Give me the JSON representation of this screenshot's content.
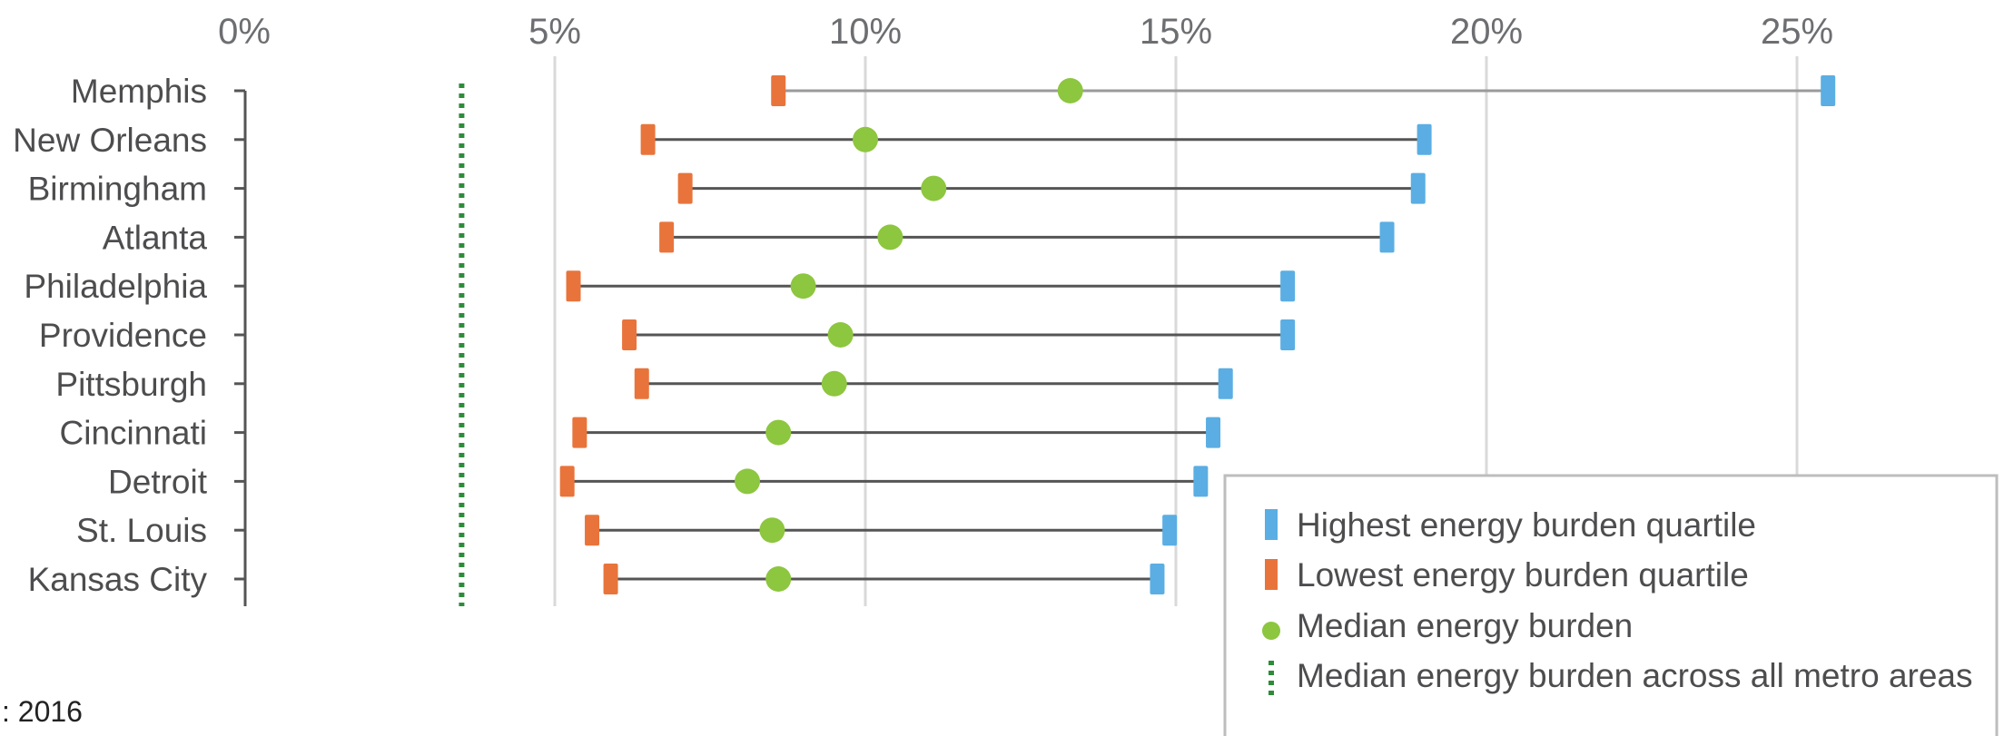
{
  "footnote": ": 2016",
  "chart_data": {
    "type": "dumbbell",
    "title": "",
    "xlabel": "",
    "ylabel": "",
    "x_ticks": [
      "0%",
      "5%",
      "10%",
      "15%",
      "20%",
      "25%"
    ],
    "xlim": [
      0,
      28
    ],
    "x_unit": "%",
    "grid": true,
    "legend_position": "bottom-right",
    "categories": [
      "Memphis",
      "New Orleans",
      "Birmingham",
      "Atlanta",
      "Philadelphia",
      "Providence",
      "Pittsburgh",
      "Cincinnati",
      "Detroit",
      "St. Louis",
      "Kansas City"
    ],
    "series": [
      {
        "name": "Highest energy burden quartile",
        "color": "#5aaee3",
        "marker": "bar",
        "values": [
          25.5,
          19.0,
          18.9,
          18.4,
          16.8,
          16.8,
          15.8,
          15.6,
          15.4,
          14.9,
          14.7
        ]
      },
      {
        "name": "Lowest energy burden quartile",
        "color": "#e8743b",
        "marker": "bar",
        "values": [
          8.6,
          6.5,
          7.1,
          6.8,
          5.3,
          6.2,
          6.4,
          5.4,
          5.2,
          5.6,
          5.9
        ]
      },
      {
        "name": "Median energy burden",
        "color": "#8dc63f",
        "marker": "dot",
        "values": [
          13.3,
          10.0,
          11.1,
          10.4,
          9.0,
          9.6,
          9.5,
          8.6,
          8.1,
          8.5,
          8.6
        ]
      }
    ],
    "reference_line": {
      "name": "Median energy burden across all metro areas",
      "value": 3.5,
      "color": "#2e8b3a",
      "style": "dotted"
    }
  }
}
